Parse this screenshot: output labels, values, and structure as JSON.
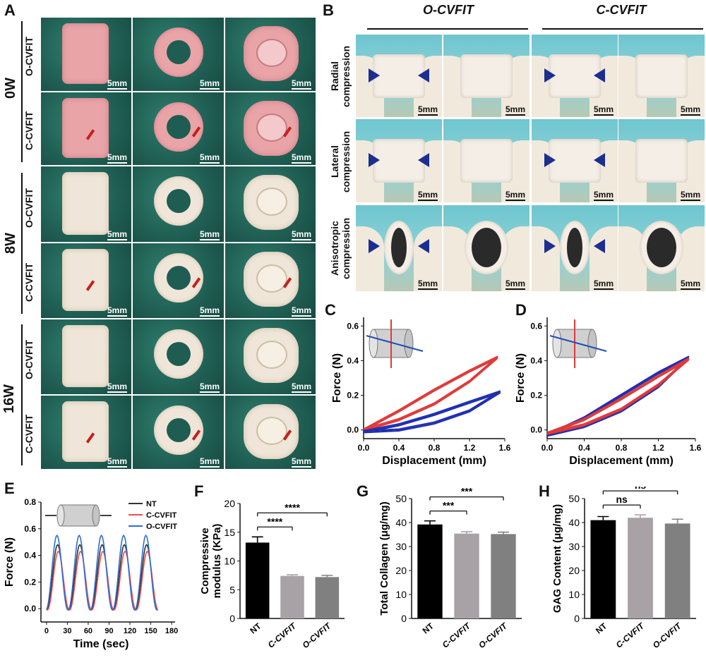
{
  "panels": {
    "A": "A",
    "B": "B",
    "C": "C",
    "D": "D",
    "E": "E",
    "F": "F",
    "G": "G",
    "H": "H"
  },
  "panelA": {
    "weeks": [
      "0W",
      "8W",
      "16W"
    ],
    "rows": [
      "O-CVFIT",
      "C-CVFIT"
    ],
    "scale": "5mm"
  },
  "panelB": {
    "groups": [
      "O-CVFIT",
      "C-CVFIT"
    ],
    "rows": [
      "Radial compression",
      "Lateral compression",
      "Anisotropic compression"
    ],
    "scale": "5mm"
  },
  "colors": {
    "red": "#e03a3a",
    "blue": "#1f2fb0",
    "nt_e": "#333333",
    "c_e": "#e8504a",
    "o_e": "#2b6fd6",
    "bar_nt": "#000000",
    "bar_c": "#a8a2a6",
    "bar_o": "#808080",
    "arrow": "#1c2e8e"
  },
  "chart_data": [
    {
      "id": "C",
      "type": "line",
      "xlabel": "Displacement (mm)",
      "ylabel": "Force (N)",
      "xlim": [
        0,
        1.6
      ],
      "ylim": [
        -0.05,
        0.65
      ],
      "xticks": [
        "0.0",
        "0.4",
        "0.8",
        "1.2",
        "1.6"
      ],
      "yticks": [
        "0.0",
        "0.2",
        "0.4",
        "0.6"
      ],
      "series": [
        {
          "color": "red",
          "load": [
            [
              0,
              0
            ],
            [
              0.4,
              0.06
            ],
            [
              0.8,
              0.15
            ],
            [
              1.2,
              0.28
            ],
            [
              1.52,
              0.42
            ]
          ],
          "unload": [
            [
              1.52,
              0.42
            ],
            [
              1.2,
              0.34
            ],
            [
              0.8,
              0.23
            ],
            [
              0.4,
              0.11
            ],
            [
              0,
              0
            ]
          ]
        },
        {
          "color": "blue",
          "load": [
            [
              0,
              -0.01
            ],
            [
              0.4,
              0.0
            ],
            [
              0.8,
              0.04
            ],
            [
              1.2,
              0.11
            ],
            [
              1.55,
              0.22
            ]
          ],
          "unload": [
            [
              1.55,
              0.22
            ],
            [
              1.2,
              0.16
            ],
            [
              0.8,
              0.09
            ],
            [
              0.4,
              0.03
            ],
            [
              0,
              -0.01
            ]
          ]
        }
      ]
    },
    {
      "id": "D",
      "type": "line",
      "xlabel": "Displacement (mm)",
      "ylabel": "Force (N)",
      "xlim": [
        0,
        1.6
      ],
      "ylim": [
        -0.05,
        0.65
      ],
      "xticks": [
        "0.0",
        "0.4",
        "0.8",
        "1.2",
        "1.6"
      ],
      "yticks": [
        "0.0",
        "0.2",
        "0.4",
        "0.6"
      ],
      "series": [
        {
          "color": "blue",
          "load": [
            [
              0,
              -0.03
            ],
            [
              0.4,
              0.02
            ],
            [
              0.8,
              0.11
            ],
            [
              1.2,
              0.25
            ],
            [
              1.53,
              0.42
            ]
          ],
          "unload": [
            [
              1.53,
              0.42
            ],
            [
              1.2,
              0.33
            ],
            [
              0.8,
              0.2
            ],
            [
              0.4,
              0.07
            ],
            [
              0,
              -0.03
            ]
          ]
        },
        {
          "color": "red",
          "load": [
            [
              0,
              -0.02
            ],
            [
              0.4,
              0.03
            ],
            [
              0.8,
              0.12
            ],
            [
              1.2,
              0.26
            ],
            [
              1.53,
              0.41
            ]
          ],
          "unload": [
            [
              1.53,
              0.41
            ],
            [
              1.2,
              0.31
            ],
            [
              0.8,
              0.18
            ],
            [
              0.4,
              0.06
            ],
            [
              0,
              -0.02
            ]
          ]
        }
      ]
    },
    {
      "id": "E",
      "type": "line",
      "xlabel": "Time (sec)",
      "ylabel": "Force (N)",
      "xlim": [
        -8,
        185
      ],
      "ylim": [
        -0.1,
        0.8
      ],
      "xticks": [
        "0",
        "30",
        "60",
        "90",
        "120",
        "150",
        "180"
      ],
      "yticks": [
        "0.0",
        "0.2",
        "0.4",
        "0.6",
        "0.8"
      ],
      "period": 32,
      "cycles": 5,
      "series": [
        {
          "name": "NT",
          "color": "nt_e",
          "peak": 0.49,
          "phase": 0
        },
        {
          "name": "C-CVFIT",
          "color": "c_e",
          "peak": 0.44,
          "phase": 1
        },
        {
          "name": "O-CVFIT",
          "color": "o_e",
          "peak": 0.56,
          "phase": -1
        }
      ]
    },
    {
      "id": "F",
      "type": "bar",
      "ylabel": "Compressive modulus (KPa)",
      "ylim": [
        0,
        20
      ],
      "yticks": [
        "0",
        "5",
        "10",
        "15",
        "20"
      ],
      "categories": [
        "NT",
        "C-CVFIT",
        "O-CVFIT"
      ],
      "values": [
        13.2,
        7.4,
        7.2
      ],
      "errors": [
        1.0,
        0.2,
        0.3
      ],
      "significance": [
        {
          "from": 0,
          "to": 1,
          "label": "****"
        },
        {
          "from": 0,
          "to": 2,
          "label": "****"
        }
      ]
    },
    {
      "id": "G",
      "type": "bar",
      "ylabel": "Total Collagen (μg/mg)",
      "ylim": [
        0,
        50
      ],
      "yticks": [
        "0",
        "10",
        "20",
        "30",
        "40",
        "50"
      ],
      "categories": [
        "NT",
        "C-CVFIT",
        "O-CVFIT"
      ],
      "values": [
        39.2,
        35.4,
        35.2
      ],
      "errors": [
        1.5,
        0.8,
        0.8
      ],
      "significance": [
        {
          "from": 0,
          "to": 1,
          "label": "***"
        },
        {
          "from": 0,
          "to": 2,
          "label": "***"
        }
      ]
    },
    {
      "id": "H",
      "type": "bar",
      "ylabel": "GAG Content (μg/mg)",
      "ylim": [
        0,
        50
      ],
      "yticks": [
        "0",
        "10",
        "20",
        "30",
        "40",
        "50"
      ],
      "categories": [
        "NT",
        "C-CVFIT",
        "O-CVFIT"
      ],
      "values": [
        41.0,
        42.0,
        39.6
      ],
      "errors": [
        1.5,
        1.2,
        1.8
      ],
      "significance": [
        {
          "from": 0,
          "to": 1,
          "label": "ns"
        },
        {
          "from": 0,
          "to": 2,
          "label": "ns"
        }
      ]
    }
  ]
}
